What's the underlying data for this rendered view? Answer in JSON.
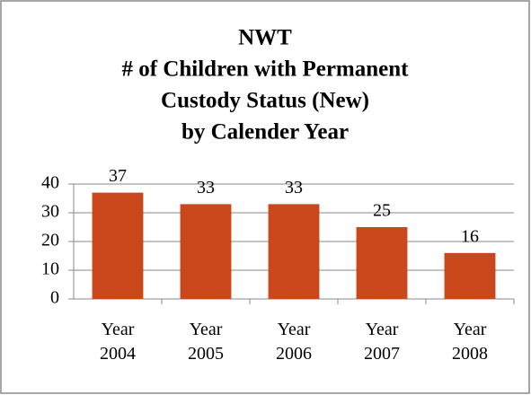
{
  "chart_data": {
    "type": "bar",
    "title": [
      "NWT",
      "# of Children with Permanent",
      "Custody Status (New)",
      "by Calender Year"
    ],
    "categories": [
      "Year 2004",
      "Year 2005",
      "Year 2006",
      "Year 2007",
      "Year 2008"
    ],
    "values": [
      37,
      33,
      33,
      25,
      16
    ],
    "color": "#c9471b",
    "ylim": [
      0,
      40
    ],
    "yticks": [
      0,
      10,
      20,
      30,
      40
    ],
    "grid": true
  }
}
